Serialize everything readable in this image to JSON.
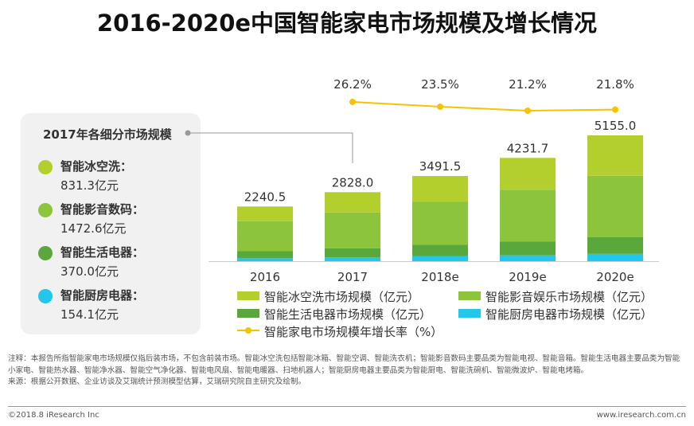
{
  "title": "2016-2020e中国智能家电市场规模及增长情况",
  "panel": {
    "title": "2017年各细分市场规模",
    "items": [
      {
        "name": "智能冰空洗：",
        "value": "831.3亿元",
        "color": "#b3cf2e"
      },
      {
        "name": "智能影音数码：",
        "value": "1472.6亿元",
        "color": "#8cc43c"
      },
      {
        "name": "智能生活电器：",
        "value": "370.0亿元",
        "color": "#5aa83c"
      },
      {
        "name": "智能厨房电器：",
        "value": "154.1亿元",
        "color": "#22c7ec"
      }
    ]
  },
  "chart_data": {
    "type": "bar",
    "stacked": true,
    "categories": [
      "2016",
      "2017",
      "2018e",
      "2019e",
      "2020e"
    ],
    "totals": [
      "2240.5",
      "2828.0",
      "3491.5",
      "4231.7",
      "5155.0"
    ],
    "series": [
      {
        "name": "智能厨房电器市场规模（亿元）",
        "color": "#22c7ec",
        "values": [
          120,
          154.1,
          200,
          240,
          300
        ]
      },
      {
        "name": "智能生活电器市场规模（亿元）",
        "color": "#5aa83c",
        "values": [
          300,
          370.0,
          470,
          560,
          680
        ]
      },
      {
        "name": "智能影音娱乐市场规模（亿元）",
        "color": "#8cc43c",
        "values": [
          1220,
          1472.6,
          1760,
          2130,
          2520
        ]
      },
      {
        "name": "智能冰空洗市场规模（亿元）",
        "color": "#b3cf2e",
        "values": [
          600.5,
          831.3,
          1061.5,
          1301.7,
          1655.0
        ]
      }
    ],
    "growth": {
      "name": "智能家电市场规模年增长率（%）",
      "color": "#f5c400",
      "categories": [
        "2017",
        "2018e",
        "2019e",
        "2020e"
      ],
      "values": [
        26.2,
        23.5,
        21.2,
        21.8
      ],
      "labels": [
        "26.2%",
        "23.5%",
        "21.2%",
        "21.8%"
      ]
    },
    "ylim": [
      0,
      5155.0
    ],
    "grid": false,
    "legend_position": "bottom"
  },
  "legend": [
    {
      "label": "智能冰空洗市场规模（亿元）",
      "color": "#b3cf2e",
      "kind": "bar"
    },
    {
      "label": "智能影音娱乐市场规模（亿元）",
      "color": "#8cc43c",
      "kind": "bar"
    },
    {
      "label": "智能生活电器市场规模（亿元）",
      "color": "#5aa83c",
      "kind": "bar"
    },
    {
      "label": "智能厨房电器市场规模（亿元）",
      "color": "#22c7ec",
      "kind": "bar"
    },
    {
      "label": "智能家电市场规模年增长率（%）",
      "color": "#f5c400",
      "kind": "line"
    }
  ],
  "note": "注释：本报告所指智能家电市场规模仅指后装市场，不包含前装市场。智能冰空洗包括智能冰箱、智能空调、智能洗衣机；智能影音数码主要品类为智能电视、智能音箱。智能生活电器主要品类为智能小家电、智能热水器、智能净水器、智能空气净化器、智能电风扇、智能电暖器、扫地机器人；智能厨房电器主要品类为智能厨电、智能洗碗机、智能微波炉、智能电烤箱。",
  "source": "来源：根据公开数据、企业访谈及艾瑞统计预测模型估算，艾瑞研究院自主研究及绘制。",
  "footer": {
    "left": "©2018.8 iResearch Inc",
    "right": "www.iresearch.com.cn"
  }
}
